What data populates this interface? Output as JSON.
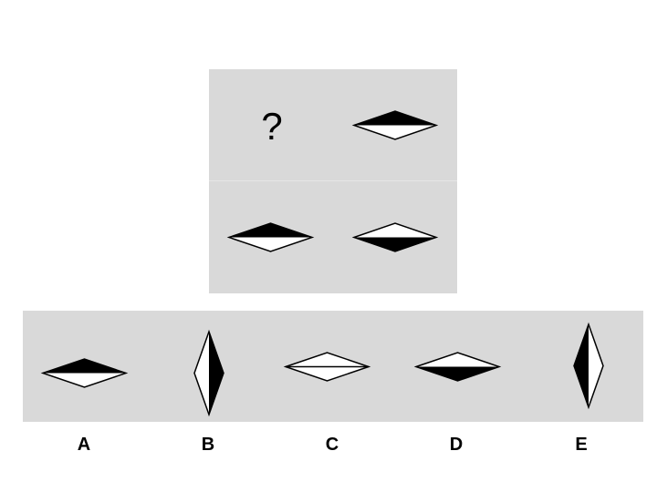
{
  "puzzle": {
    "missing_cell_symbol": "?"
  },
  "matrix_cells": [
    {
      "position": "top-left",
      "content": "question-mark"
    },
    {
      "position": "top-right",
      "orientation": "horizontal",
      "filled_half": "top"
    },
    {
      "position": "bottom-left",
      "orientation": "horizontal",
      "filled_half": "top"
    },
    {
      "position": "bottom-right",
      "orientation": "horizontal",
      "filled_half": "bottom"
    }
  ],
  "options": [
    {
      "label": "A",
      "orientation": "horizontal",
      "filled_half": "top"
    },
    {
      "label": "B",
      "orientation": "vertical",
      "filled_half": "right"
    },
    {
      "label": "C",
      "orientation": "horizontal",
      "filled_half": "none"
    },
    {
      "label": "D",
      "orientation": "horizontal",
      "filled_half": "bottom"
    },
    {
      "label": "E",
      "orientation": "vertical",
      "filled_half": "left"
    }
  ],
  "colors": {
    "panel_background": "#d9d9d9",
    "shape_fill": "#000000",
    "shape_empty": "#ffffff",
    "stroke": "#000000"
  }
}
